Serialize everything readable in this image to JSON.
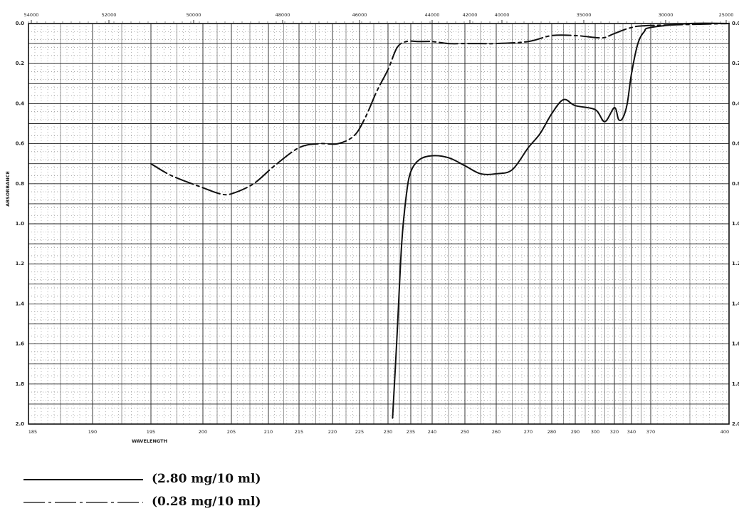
{
  "chart_data": {
    "type": "line",
    "title": "",
    "xlabel": "WAVELENGTH",
    "ylabel": "ABSORBANCE",
    "y_inverted": true,
    "ylim": [
      0.0,
      2.0
    ],
    "y_ticks_left": [
      "0.0",
      "0.2",
      "0.4",
      "0.6",
      "0.8",
      "1.0",
      "1.2",
      "1.4",
      "1.6",
      "1.8",
      "2.0"
    ],
    "y_ticks_right": [
      "0.0",
      "0.2",
      "0.4",
      "0.6",
      "0.8",
      "1.0",
      "1.2",
      "1.4",
      "1.6",
      "1.8",
      "2.0"
    ],
    "x_ticks": [
      "185",
      "190",
      "195",
      "200",
      "205",
      "210",
      "215",
      "220",
      "225",
      "230",
      "235",
      "240",
      "250",
      "260",
      "270",
      "280",
      "290",
      "300",
      "320",
      "340",
      "370",
      "400"
    ],
    "top_ticks": [
      "54000",
      "52000",
      "50000",
      "48000",
      "46000",
      "44000",
      "42000",
      "40000",
      "35000",
      "30000",
      "25000"
    ],
    "grid": true,
    "series": [
      {
        "name": "(2.80 mg/10 ml)",
        "style": "solid",
        "points": [
          [
            231,
            1.97
          ],
          [
            232,
            1.55
          ],
          [
            233,
            1.1
          ],
          [
            234,
            0.86
          ],
          [
            235,
            0.74
          ],
          [
            237,
            0.68
          ],
          [
            240,
            0.66
          ],
          [
            245,
            0.67
          ],
          [
            250,
            0.71
          ],
          [
            255,
            0.75
          ],
          [
            260,
            0.75
          ],
          [
            265,
            0.73
          ],
          [
            270,
            0.62
          ],
          [
            275,
            0.55
          ],
          [
            280,
            0.45
          ],
          [
            285,
            0.38
          ],
          [
            290,
            0.41
          ],
          [
            300,
            0.43
          ],
          [
            310,
            0.49
          ],
          [
            320,
            0.42
          ],
          [
            325,
            0.48
          ],
          [
            330,
            0.47
          ],
          [
            335,
            0.4
          ],
          [
            340,
            0.25
          ],
          [
            350,
            0.1
          ],
          [
            360,
            0.04
          ],
          [
            370,
            0.02
          ],
          [
            385,
            0.0
          ],
          [
            400,
            0.0
          ]
        ]
      },
      {
        "name": "(0.28 mg/10 ml)",
        "style": "dash-dot",
        "points": [
          [
            195,
            0.7
          ],
          [
            197,
            0.76
          ],
          [
            200,
            0.82
          ],
          [
            203,
            0.85
          ],
          [
            205,
            0.85
          ],
          [
            208,
            0.8
          ],
          [
            211,
            0.71
          ],
          [
            215,
            0.62
          ],
          [
            218,
            0.6
          ],
          [
            221,
            0.6
          ],
          [
            224,
            0.56
          ],
          [
            226,
            0.47
          ],
          [
            228,
            0.34
          ],
          [
            230,
            0.23
          ],
          [
            232,
            0.12
          ],
          [
            234,
            0.09
          ],
          [
            237,
            0.09
          ],
          [
            240,
            0.09
          ],
          [
            245,
            0.1
          ],
          [
            250,
            0.1
          ],
          [
            255,
            0.1
          ],
          [
            260,
            0.1
          ],
          [
            270,
            0.09
          ],
          [
            280,
            0.06
          ],
          [
            290,
            0.06
          ],
          [
            300,
            0.07
          ],
          [
            310,
            0.07
          ],
          [
            320,
            0.05
          ],
          [
            340,
            0.02
          ],
          [
            370,
            0.01
          ],
          [
            400,
            0.0
          ]
        ]
      }
    ]
  }
}
